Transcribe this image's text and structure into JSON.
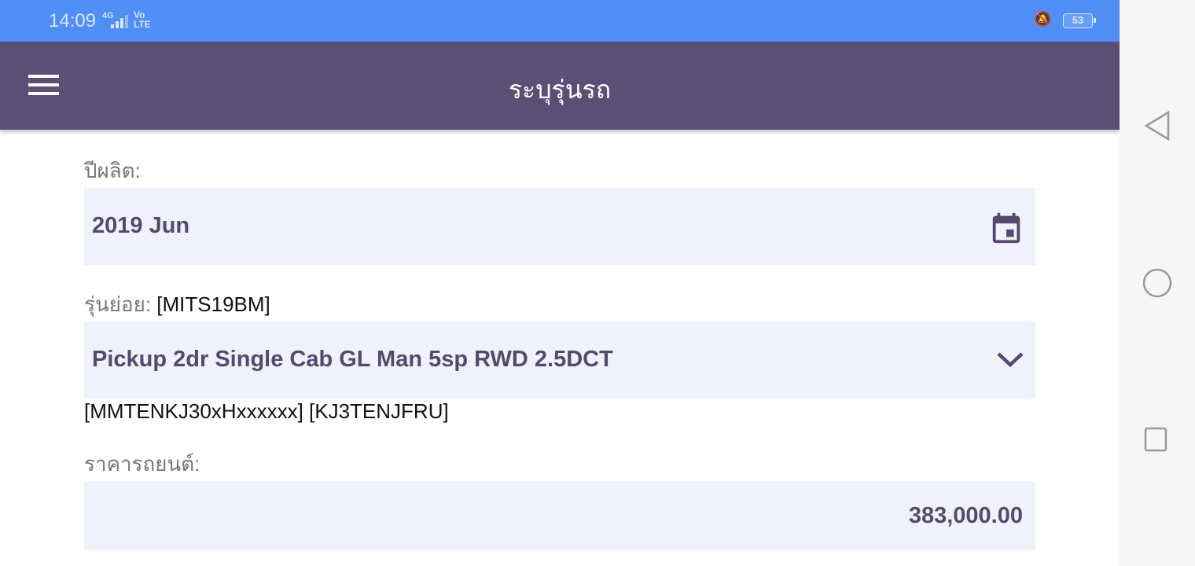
{
  "status_bar": {
    "time": "14:09",
    "network": "4G",
    "volte": "Vo LTE",
    "battery": "53",
    "icons": [
      "signal-icon",
      "vibrate-icon",
      "battery-icon"
    ]
  },
  "app_bar": {
    "title": "ระบุรุ่นรถ",
    "menu_icon": "hamburger-menu-icon"
  },
  "form": {
    "year_label": "ปีผลิต:",
    "year_value": "2019 Jun",
    "submodel_label": "รุ่นย่อย:",
    "submodel_code": "[MITS19BM]",
    "submodel_value": "Pickup 2dr Single Cab GL Man 5sp RWD 2.5DCT",
    "submodel_codes": "[MMTENKJ30xHxxxxxx] [KJ3TENJFRU]",
    "price_label": "ราคารถยนต์:",
    "price_value": "383,000.00"
  },
  "nav_bar": {
    "icons": [
      "back-icon",
      "home-icon",
      "recents-icon"
    ]
  },
  "colors": {
    "status": "#4e8ef5",
    "app_bar": "#5a4f74",
    "field_bg": "#eff2fb",
    "field_text": "#55496e"
  }
}
